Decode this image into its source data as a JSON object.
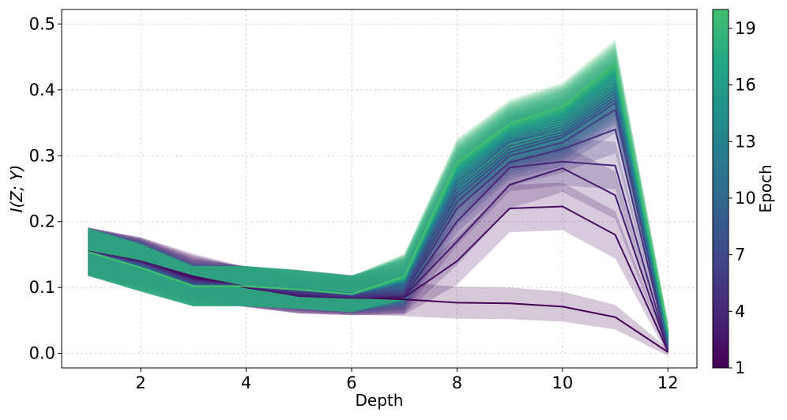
{
  "chart_data": {
    "type": "line",
    "title": "",
    "xlabel": "Depth",
    "ylabel": "I(Z; Y)",
    "xlim": [
      0.5,
      12.55
    ],
    "ylim": [
      -0.022,
      0.522
    ],
    "xticks": [
      2,
      4,
      6,
      8,
      10,
      12
    ],
    "yticks": [
      0.0,
      0.1,
      0.2,
      0.3,
      0.4,
      0.5
    ],
    "xtick_labels": [
      "2",
      "4",
      "6",
      "8",
      "10",
      "12"
    ],
    "ytick_labels": [
      "0.0",
      "0.1",
      "0.2",
      "0.3",
      "0.4",
      "0.5"
    ],
    "grid": true,
    "x": [
      1,
      2,
      3,
      4,
      5,
      6,
      7,
      8,
      9,
      10,
      11,
      12
    ],
    "band_halfwidth": 0.036,
    "series": [
      {
        "name": "Epoch 1",
        "epoch": 1,
        "values": [
          0.155,
          0.14,
          0.115,
          0.1,
          0.088,
          0.085,
          0.082,
          0.077,
          0.076,
          0.071,
          0.055,
          0.002
        ]
      },
      {
        "name": "Epoch 2",
        "epoch": 2,
        "values": [
          0.155,
          0.14,
          0.117,
          0.101,
          0.087,
          0.084,
          0.085,
          0.14,
          0.22,
          0.223,
          0.18,
          0.003
        ]
      },
      {
        "name": "Epoch 3",
        "epoch": 3,
        "values": [
          0.155,
          0.139,
          0.113,
          0.101,
          0.088,
          0.084,
          0.087,
          0.17,
          0.256,
          0.281,
          0.24,
          0.005
        ]
      },
      {
        "name": "Epoch 4",
        "epoch": 4,
        "values": [
          0.155,
          0.138,
          0.111,
          0.102,
          0.09,
          0.085,
          0.088,
          0.2,
          0.282,
          0.291,
          0.285,
          0.006
        ]
      },
      {
        "name": "Epoch 5",
        "epoch": 5,
        "values": [
          0.154,
          0.137,
          0.11,
          0.102,
          0.092,
          0.087,
          0.091,
          0.22,
          0.29,
          0.31,
          0.34,
          0.008
        ]
      },
      {
        "name": "Epoch 6",
        "epoch": 6,
        "values": [
          0.154,
          0.136,
          0.108,
          0.102,
          0.094,
          0.088,
          0.094,
          0.23,
          0.3,
          0.32,
          0.37,
          0.01
        ]
      },
      {
        "name": "Epoch 7",
        "epoch": 7,
        "values": [
          0.154,
          0.135,
          0.106,
          0.102,
          0.096,
          0.089,
          0.097,
          0.238,
          0.305,
          0.328,
          0.38,
          0.012
        ]
      },
      {
        "name": "Epoch 8",
        "epoch": 8,
        "values": [
          0.154,
          0.134,
          0.105,
          0.102,
          0.097,
          0.09,
          0.1,
          0.244,
          0.31,
          0.332,
          0.385,
          0.014
        ]
      },
      {
        "name": "Epoch 9",
        "epoch": 9,
        "values": [
          0.154,
          0.133,
          0.104,
          0.102,
          0.097,
          0.091,
          0.103,
          0.25,
          0.315,
          0.336,
          0.39,
          0.016
        ]
      },
      {
        "name": "Epoch 10",
        "epoch": 10,
        "values": [
          0.154,
          0.132,
          0.103,
          0.102,
          0.097,
          0.091,
          0.105,
          0.255,
          0.32,
          0.34,
          0.395,
          0.018
        ]
      },
      {
        "name": "Epoch 11",
        "epoch": 11,
        "values": [
          0.154,
          0.131,
          0.103,
          0.102,
          0.097,
          0.091,
          0.107,
          0.26,
          0.322,
          0.344,
          0.4,
          0.02
        ]
      },
      {
        "name": "Epoch 12",
        "epoch": 12,
        "values": [
          0.154,
          0.13,
          0.102,
          0.102,
          0.097,
          0.091,
          0.109,
          0.264,
          0.325,
          0.348,
          0.405,
          0.022
        ]
      },
      {
        "name": "Epoch 13",
        "epoch": 13,
        "values": [
          0.154,
          0.13,
          0.102,
          0.102,
          0.097,
          0.09,
          0.11,
          0.268,
          0.328,
          0.352,
          0.41,
          0.024
        ]
      },
      {
        "name": "Epoch 14",
        "epoch": 14,
        "values": [
          0.154,
          0.13,
          0.102,
          0.102,
          0.097,
          0.09,
          0.111,
          0.272,
          0.331,
          0.356,
          0.415,
          0.026
        ]
      },
      {
        "name": "Epoch 15",
        "epoch": 15,
        "values": [
          0.154,
          0.13,
          0.102,
          0.102,
          0.097,
          0.09,
          0.112,
          0.275,
          0.334,
          0.36,
          0.42,
          0.028
        ]
      },
      {
        "name": "Epoch 16",
        "epoch": 16,
        "values": [
          0.154,
          0.13,
          0.102,
          0.102,
          0.097,
          0.09,
          0.113,
          0.278,
          0.337,
          0.363,
          0.424,
          0.03
        ]
      },
      {
        "name": "Epoch 17",
        "epoch": 17,
        "values": [
          0.154,
          0.13,
          0.102,
          0.102,
          0.097,
          0.09,
          0.114,
          0.281,
          0.34,
          0.366,
          0.428,
          0.032
        ]
      },
      {
        "name": "Epoch 18",
        "epoch": 18,
        "values": [
          0.154,
          0.13,
          0.102,
          0.102,
          0.097,
          0.09,
          0.115,
          0.284,
          0.343,
          0.369,
          0.432,
          0.033
        ]
      },
      {
        "name": "Epoch 19",
        "epoch": 19,
        "values": [
          0.154,
          0.13,
          0.102,
          0.102,
          0.097,
          0.09,
          0.116,
          0.287,
          0.346,
          0.372,
          0.436,
          0.034
        ]
      },
      {
        "name": "Epoch 20",
        "epoch": 20,
        "values": [
          0.154,
          0.13,
          0.102,
          0.102,
          0.097,
          0.09,
          0.117,
          0.29,
          0.349,
          0.375,
          0.44,
          0.035
        ]
      }
    ],
    "colorbar": {
      "label": "Epoch",
      "range": [
        1,
        20
      ],
      "ticks": [
        1,
        4,
        7,
        10,
        13,
        16,
        19
      ],
      "tick_labels": [
        "1",
        "4",
        "7",
        "10",
        "13",
        "16",
        "19"
      ],
      "colormap": "viridis (truncated)",
      "colors": [
        "#440154",
        "#482475",
        "#414487",
        "#355f8d",
        "#2a788e",
        "#21918c",
        "#22a884",
        "#44bf70"
      ]
    }
  }
}
